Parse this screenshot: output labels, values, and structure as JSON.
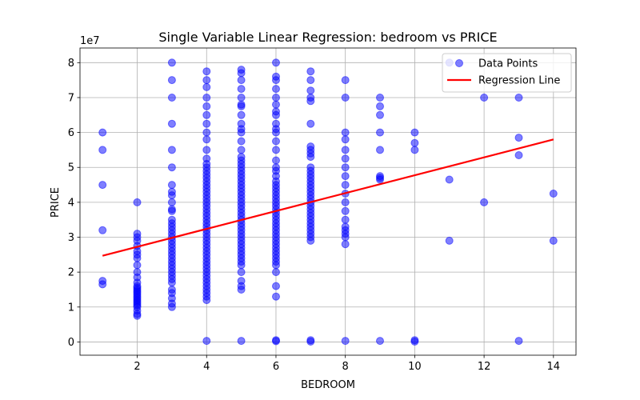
{
  "chart_data": {
    "type": "scatter",
    "title": "Single Variable Linear Regression: bedroom vs PRICE",
    "xlabel": "BEDROOM",
    "ylabel": "PRICE",
    "y_offset_label": "1e7",
    "xlim": [
      0.35,
      14.65
    ],
    "ylim": [
      -3800000,
      84200000
    ],
    "x_ticks": [
      2,
      4,
      6,
      8,
      10,
      12,
      14
    ],
    "y_ticks": [
      0,
      10000000,
      20000000,
      30000000,
      40000000,
      50000000,
      60000000,
      70000000,
      80000000
    ],
    "y_tick_labels": [
      "0",
      "1",
      "2",
      "3",
      "4",
      "5",
      "6",
      "7",
      "8"
    ],
    "grid": true,
    "legend_position": "top-right",
    "colors": {
      "points": "#0000ff",
      "line": "#ff0000"
    },
    "series": [
      {
        "name": "Data Points",
        "kind": "scatter",
        "points": [
          [
            1,
            60000000
          ],
          [
            1,
            55000000
          ],
          [
            1,
            45000000
          ],
          [
            1,
            32000000
          ],
          [
            1,
            17500000
          ],
          [
            1,
            16500000
          ],
          [
            2,
            40000000
          ],
          [
            2,
            31000000
          ],
          [
            2,
            30000000
          ],
          [
            2,
            29000000
          ],
          [
            2,
            27500000
          ],
          [
            2,
            26000000
          ],
          [
            2,
            25000000
          ],
          [
            2,
            24000000
          ],
          [
            2,
            22000000
          ],
          [
            2,
            20000000
          ],
          [
            2,
            18500000
          ],
          [
            2,
            17000000
          ],
          [
            2,
            16000000
          ],
          [
            2,
            15500000
          ],
          [
            2,
            15000000
          ],
          [
            2,
            14500000
          ],
          [
            2,
            14000000
          ],
          [
            2,
            13500000
          ],
          [
            2,
            13000000
          ],
          [
            2,
            12500000
          ],
          [
            2,
            12000000
          ],
          [
            2,
            11500000
          ],
          [
            2,
            11000000
          ],
          [
            2,
            10500000
          ],
          [
            2,
            10000000
          ],
          [
            2,
            9000000
          ],
          [
            2,
            8000000
          ],
          [
            2,
            7500000
          ],
          [
            3,
            80000000
          ],
          [
            3,
            75000000
          ],
          [
            3,
            70000000
          ],
          [
            3,
            62500000
          ],
          [
            3,
            55000000
          ],
          [
            3,
            50000000
          ],
          [
            3,
            45000000
          ],
          [
            3,
            43000000
          ],
          [
            3,
            42000000
          ],
          [
            3,
            40000000
          ],
          [
            3,
            38000000
          ],
          [
            3,
            37500000
          ],
          [
            3,
            35000000
          ],
          [
            3,
            34000000
          ],
          [
            3,
            33000000
          ],
          [
            3,
            32000000
          ],
          [
            3,
            31000000
          ],
          [
            3,
            30000000
          ],
          [
            3,
            29000000
          ],
          [
            3,
            28000000
          ],
          [
            3,
            27000000
          ],
          [
            3,
            26000000
          ],
          [
            3,
            25000000
          ],
          [
            3,
            24000000
          ],
          [
            3,
            23000000
          ],
          [
            3,
            22000000
          ],
          [
            3,
            21000000
          ],
          [
            3,
            20000000
          ],
          [
            3,
            19000000
          ],
          [
            3,
            18000000
          ],
          [
            3,
            17000000
          ],
          [
            3,
            15000000
          ],
          [
            3,
            14000000
          ],
          [
            3,
            12500000
          ],
          [
            3,
            11000000
          ],
          [
            3,
            10000000
          ],
          [
            4,
            77500000
          ],
          [
            4,
            75000000
          ],
          [
            4,
            73000000
          ],
          [
            4,
            70000000
          ],
          [
            4,
            67500000
          ],
          [
            4,
            65000000
          ],
          [
            4,
            62500000
          ],
          [
            4,
            60000000
          ],
          [
            4,
            58000000
          ],
          [
            4,
            55000000
          ],
          [
            4,
            52500000
          ],
          [
            4,
            51000000
          ],
          [
            4,
            50000000
          ],
          [
            4,
            49000000
          ],
          [
            4,
            48000000
          ],
          [
            4,
            47000000
          ],
          [
            4,
            46000000
          ],
          [
            4,
            45000000
          ],
          [
            4,
            44000000
          ],
          [
            4,
            43000000
          ],
          [
            4,
            42000000
          ],
          [
            4,
            41000000
          ],
          [
            4,
            40000000
          ],
          [
            4,
            39000000
          ],
          [
            4,
            38000000
          ],
          [
            4,
            37000000
          ],
          [
            4,
            36000000
          ],
          [
            4,
            35000000
          ],
          [
            4,
            34000000
          ],
          [
            4,
            33000000
          ],
          [
            4,
            32000000
          ],
          [
            4,
            31000000
          ],
          [
            4,
            30000000
          ],
          [
            4,
            29000000
          ],
          [
            4,
            28000000
          ],
          [
            4,
            27000000
          ],
          [
            4,
            26000000
          ],
          [
            4,
            25000000
          ],
          [
            4,
            24000000
          ],
          [
            4,
            23000000
          ],
          [
            4,
            22000000
          ],
          [
            4,
            21000000
          ],
          [
            4,
            20000000
          ],
          [
            4,
            19000000
          ],
          [
            4,
            18000000
          ],
          [
            4,
            17000000
          ],
          [
            4,
            16000000
          ],
          [
            4,
            15000000
          ],
          [
            4,
            14000000
          ],
          [
            4,
            13000000
          ],
          [
            4,
            12000000
          ],
          [
            4,
            300000
          ],
          [
            5,
            78000000
          ],
          [
            5,
            77000000
          ],
          [
            5,
            75000000
          ],
          [
            5,
            72500000
          ],
          [
            5,
            70000000
          ],
          [
            5,
            68000000
          ],
          [
            5,
            67500000
          ],
          [
            5,
            65000000
          ],
          [
            5,
            62500000
          ],
          [
            5,
            61000000
          ],
          [
            5,
            60000000
          ],
          [
            5,
            57500000
          ],
          [
            5,
            55000000
          ],
          [
            5,
            53000000
          ],
          [
            5,
            52000000
          ],
          [
            5,
            51000000
          ],
          [
            5,
            50000000
          ],
          [
            5,
            49000000
          ],
          [
            5,
            48000000
          ],
          [
            5,
            47000000
          ],
          [
            5,
            46000000
          ],
          [
            5,
            45000000
          ],
          [
            5,
            44000000
          ],
          [
            5,
            43000000
          ],
          [
            5,
            42000000
          ],
          [
            5,
            41000000
          ],
          [
            5,
            40000000
          ],
          [
            5,
            39000000
          ],
          [
            5,
            38000000
          ],
          [
            5,
            37000000
          ],
          [
            5,
            36000000
          ],
          [
            5,
            35000000
          ],
          [
            5,
            34000000
          ],
          [
            5,
            33000000
          ],
          [
            5,
            32000000
          ],
          [
            5,
            31000000
          ],
          [
            5,
            30000000
          ],
          [
            5,
            29000000
          ],
          [
            5,
            28000000
          ],
          [
            5,
            27000000
          ],
          [
            5,
            26000000
          ],
          [
            5,
            25000000
          ],
          [
            5,
            24000000
          ],
          [
            5,
            23000000
          ],
          [
            5,
            22000000
          ],
          [
            5,
            20000000
          ],
          [
            5,
            17500000
          ],
          [
            5,
            16000000
          ],
          [
            5,
            15000000
          ],
          [
            5,
            300000
          ],
          [
            6,
            80000000
          ],
          [
            6,
            76000000
          ],
          [
            6,
            75000000
          ],
          [
            6,
            72500000
          ],
          [
            6,
            70000000
          ],
          [
            6,
            68000000
          ],
          [
            6,
            66000000
          ],
          [
            6,
            65000000
          ],
          [
            6,
            62500000
          ],
          [
            6,
            61000000
          ],
          [
            6,
            60000000
          ],
          [
            6,
            57500000
          ],
          [
            6,
            55000000
          ],
          [
            6,
            52000000
          ],
          [
            6,
            50000000
          ],
          [
            6,
            49000000
          ],
          [
            6,
            47500000
          ],
          [
            6,
            46000000
          ],
          [
            6,
            45000000
          ],
          [
            6,
            44000000
          ],
          [
            6,
            43000000
          ],
          [
            6,
            42000000
          ],
          [
            6,
            41000000
          ],
          [
            6,
            40000000
          ],
          [
            6,
            39000000
          ],
          [
            6,
            38000000
          ],
          [
            6,
            37000000
          ],
          [
            6,
            36000000
          ],
          [
            6,
            35000000
          ],
          [
            6,
            34000000
          ],
          [
            6,
            33000000
          ],
          [
            6,
            32000000
          ],
          [
            6,
            31000000
          ],
          [
            6,
            30000000
          ],
          [
            6,
            29000000
          ],
          [
            6,
            28000000
          ],
          [
            6,
            27000000
          ],
          [
            6,
            26000000
          ],
          [
            6,
            25000000
          ],
          [
            6,
            24000000
          ],
          [
            6,
            23000000
          ],
          [
            6,
            22000000
          ],
          [
            6,
            20000000
          ],
          [
            6,
            16000000
          ],
          [
            6,
            13000000
          ],
          [
            6,
            500000
          ],
          [
            6,
            200000
          ],
          [
            7,
            77500000
          ],
          [
            7,
            75000000
          ],
          [
            7,
            72000000
          ],
          [
            7,
            70000000
          ],
          [
            7,
            69000000
          ],
          [
            7,
            62500000
          ],
          [
            7,
            56000000
          ],
          [
            7,
            55000000
          ],
          [
            7,
            54000000
          ],
          [
            7,
            53000000
          ],
          [
            7,
            50000000
          ],
          [
            7,
            49000000
          ],
          [
            7,
            48000000
          ],
          [
            7,
            47000000
          ],
          [
            7,
            46000000
          ],
          [
            7,
            45000000
          ],
          [
            7,
            44000000
          ],
          [
            7,
            43000000
          ],
          [
            7,
            42000000
          ],
          [
            7,
            41000000
          ],
          [
            7,
            40000000
          ],
          [
            7,
            39000000
          ],
          [
            7,
            38000000
          ],
          [
            7,
            37000000
          ],
          [
            7,
            36000000
          ],
          [
            7,
            35000000
          ],
          [
            7,
            34000000
          ],
          [
            7,
            33000000
          ],
          [
            7,
            32000000
          ],
          [
            7,
            31000000
          ],
          [
            7,
            30000000
          ],
          [
            7,
            29000000
          ],
          [
            7,
            500000
          ],
          [
            7,
            100000
          ],
          [
            8,
            75000000
          ],
          [
            8,
            70000000
          ],
          [
            8,
            60000000
          ],
          [
            8,
            58000000
          ],
          [
            8,
            55000000
          ],
          [
            8,
            52500000
          ],
          [
            8,
            50000000
          ],
          [
            8,
            47500000
          ],
          [
            8,
            45000000
          ],
          [
            8,
            42500000
          ],
          [
            8,
            40000000
          ],
          [
            8,
            37500000
          ],
          [
            8,
            35000000
          ],
          [
            8,
            33000000
          ],
          [
            8,
            32000000
          ],
          [
            8,
            31000000
          ],
          [
            8,
            30000000
          ],
          [
            8,
            28000000
          ],
          [
            8,
            300000
          ],
          [
            9,
            70000000
          ],
          [
            9,
            67500000
          ],
          [
            9,
            65000000
          ],
          [
            9,
            60000000
          ],
          [
            9,
            55000000
          ],
          [
            9,
            47500000
          ],
          [
            9,
            47000000
          ],
          [
            9,
            46500000
          ],
          [
            9,
            300000
          ],
          [
            10,
            60000000
          ],
          [
            10,
            57000000
          ],
          [
            10,
            55000000
          ],
          [
            10,
            500000
          ],
          [
            10,
            100000
          ],
          [
            11,
            80000000
          ],
          [
            11,
            46500000
          ],
          [
            11,
            29000000
          ],
          [
            12,
            70000000
          ],
          [
            12,
            40000000
          ],
          [
            13,
            70000000
          ],
          [
            13,
            58500000
          ],
          [
            13,
            53500000
          ],
          [
            13,
            300000
          ],
          [
            14,
            42500000
          ],
          [
            14,
            29000000
          ]
        ]
      },
      {
        "name": "Regression Line",
        "kind": "line",
        "points": [
          [
            1,
            24700000
          ],
          [
            14,
            58000000
          ]
        ]
      }
    ]
  }
}
